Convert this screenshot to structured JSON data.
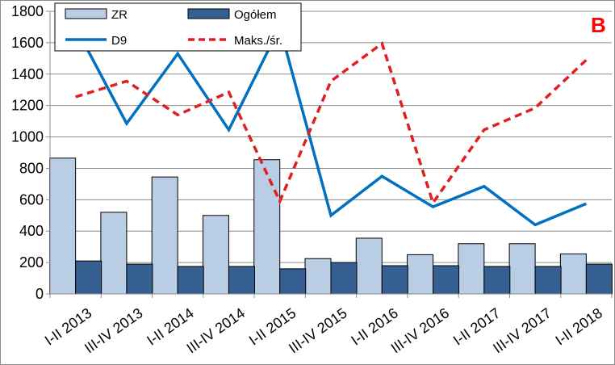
{
  "panel_label": "B",
  "colors": {
    "zr": "#b9cde5",
    "ogolem": "#376092",
    "d9": "#0070c0",
    "maks": "#e02020",
    "bar_stroke": "#000000",
    "grid": "#8c8c8c",
    "panel_letter": "#ff0000"
  },
  "chart_data": {
    "type": "bar",
    "title": "",
    "xlabel": "",
    "ylabel": "",
    "ylim": [
      0,
      1800
    ],
    "yticks": [
      0,
      200,
      400,
      600,
      800,
      1000,
      1200,
      1400,
      1600,
      1800
    ],
    "grid": true,
    "legend_placement": "top-left",
    "categories": [
      "I-II 2013",
      "III-IV 2013",
      "I-II 2014",
      "III-IV 2014",
      "I-II 2015",
      "III-IV 2015",
      "I-II 2016",
      "III-IV 2016",
      "I-II 2017",
      "III-IV 2017",
      "I-II 2018"
    ],
    "series": [
      {
        "name": "ZR",
        "kind": "bar",
        "values": [
          865,
          520,
          745,
          500,
          855,
          225,
          355,
          250,
          320,
          320,
          255
        ]
      },
      {
        "name": "Ogółem",
        "kind": "bar",
        "values": [
          210,
          190,
          175,
          175,
          160,
          200,
          180,
          180,
          175,
          175,
          190
        ]
      },
      {
        "name": "D9",
        "kind": "line",
        "style": "solid",
        "values": [
          1700,
          1085,
          1530,
          1045,
          1700,
          500,
          750,
          555,
          685,
          440,
          575
        ]
      },
      {
        "name": "Maks./śr.",
        "kind": "line",
        "style": "dashed",
        "values": [
          1255,
          1355,
          1140,
          1285,
          590,
          1355,
          1595,
          580,
          1045,
          1185,
          1490
        ]
      }
    ]
  }
}
